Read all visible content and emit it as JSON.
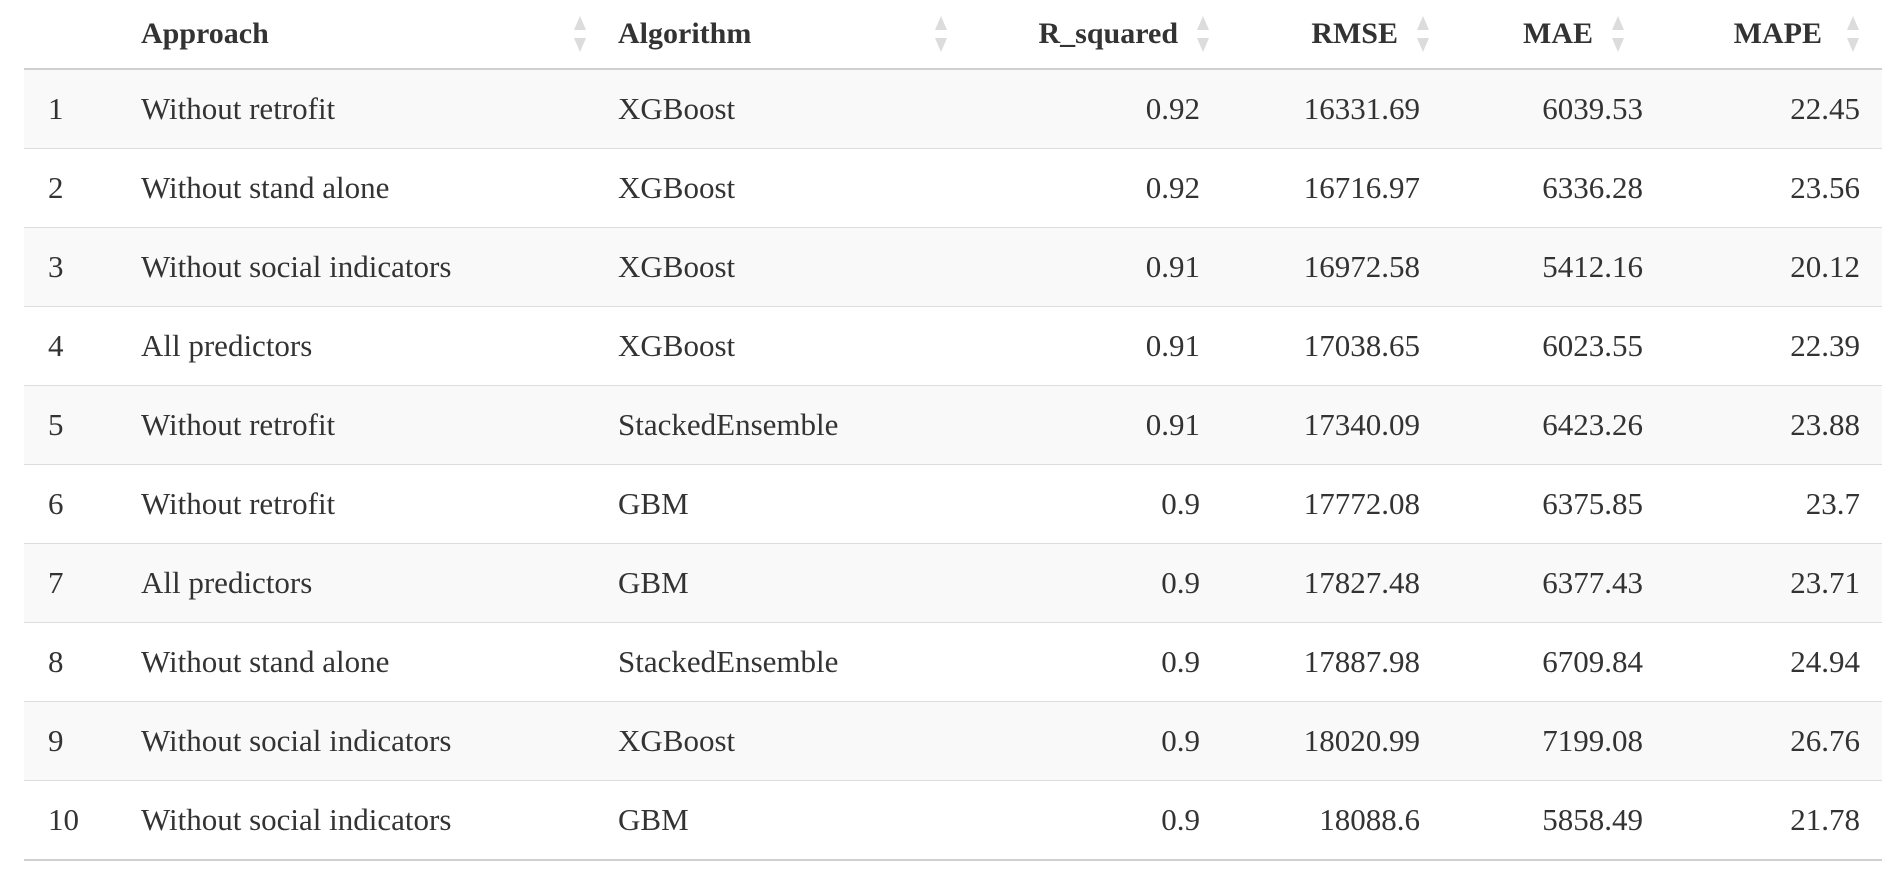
{
  "table": {
    "columns": [
      {
        "key": "index",
        "label": ""
      },
      {
        "key": "approach",
        "label": "Approach"
      },
      {
        "key": "algorithm",
        "label": "Algorithm"
      },
      {
        "key": "r_squared",
        "label": "R_squared"
      },
      {
        "key": "rmse",
        "label": "RMSE"
      },
      {
        "key": "mae",
        "label": "MAE"
      },
      {
        "key": "mape",
        "label": "MAPE"
      }
    ],
    "headers": {
      "approach": "Approach",
      "algorithm": "Algorithm",
      "r_squared": "R_squared",
      "rmse": "RMSE",
      "mae": "MAE",
      "mape": "MAPE"
    },
    "rows": [
      {
        "index": "1",
        "approach": "Without retrofit",
        "algorithm": "XGBoost",
        "r_squared": "0.92",
        "rmse": "16331.69",
        "mae": "6039.53",
        "mape": "22.45"
      },
      {
        "index": "2",
        "approach": "Without stand alone",
        "algorithm": "XGBoost",
        "r_squared": "0.92",
        "rmse": "16716.97",
        "mae": "6336.28",
        "mape": "23.56"
      },
      {
        "index": "3",
        "approach": "Without social indicators",
        "algorithm": "XGBoost",
        "r_squared": "0.91",
        "rmse": "16972.58",
        "mae": "5412.16",
        "mape": "20.12"
      },
      {
        "index": "4",
        "approach": "All predictors",
        "algorithm": "XGBoost",
        "r_squared": "0.91",
        "rmse": "17038.65",
        "mae": "6023.55",
        "mape": "22.39"
      },
      {
        "index": "5",
        "approach": "Without retrofit",
        "algorithm": "StackedEnsemble",
        "r_squared": "0.91",
        "rmse": "17340.09",
        "mae": "6423.26",
        "mape": "23.88"
      },
      {
        "index": "6",
        "approach": "Without retrofit",
        "algorithm": "GBM",
        "r_squared": "0.9",
        "rmse": "17772.08",
        "mae": "6375.85",
        "mape": "23.7"
      },
      {
        "index": "7",
        "approach": "All predictors",
        "algorithm": "GBM",
        "r_squared": "0.9",
        "rmse": "17827.48",
        "mae": "6377.43",
        "mape": "23.71"
      },
      {
        "index": "8",
        "approach": "Without stand alone",
        "algorithm": "StackedEnsemble",
        "r_squared": "0.9",
        "rmse": "17887.98",
        "mae": "6709.84",
        "mape": "24.94"
      },
      {
        "index": "9",
        "approach": "Without social indicators",
        "algorithm": "XGBoost",
        "r_squared": "0.9",
        "rmse": "18020.99",
        "mae": "7199.08",
        "mape": "26.76"
      },
      {
        "index": "10",
        "approach": "Without social indicators",
        "algorithm": "GBM",
        "r_squared": "0.9",
        "rmse": "18088.6",
        "mae": "5858.49",
        "mape": "21.78"
      }
    ]
  },
  "icons": {
    "sort": "sort-both-icon"
  },
  "colors": {
    "row_stripe": "#f9f9f9",
    "text": "#333333",
    "sort_icon": "#dcdcdc",
    "border": "#dddddd"
  }
}
